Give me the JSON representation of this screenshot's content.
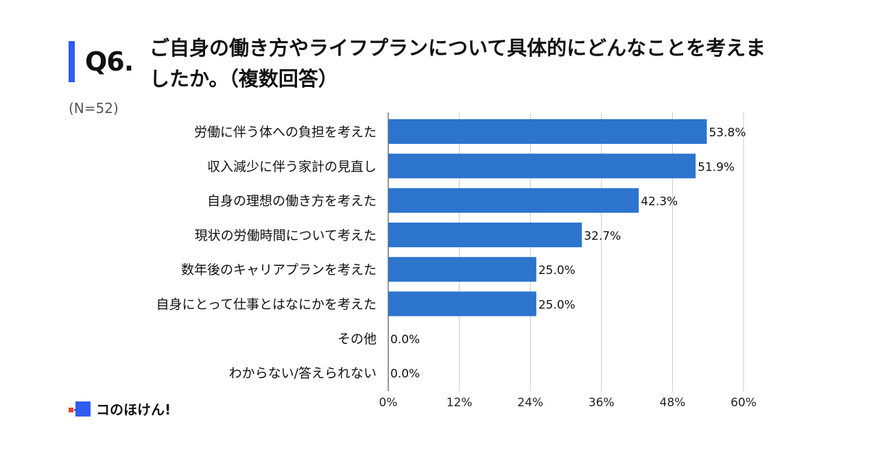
{
  "header": {
    "question_number": "Q6.",
    "question_text": "ご自身の働き方やライフプランについて具体的にどんなことを考えましたか。（複数回答）",
    "sample_size": "(N=52)",
    "accent_color": "#2f5cf0"
  },
  "brand": {
    "name": "コのほけん!",
    "logo_icon": "square-logo-icon",
    "logo_colors": [
      "#2f5cf0",
      "#e8412c"
    ]
  },
  "chart_data": {
    "type": "bar",
    "orientation": "horizontal",
    "categories": [
      "労働に伴う体への負担を考えた",
      "収入減少に伴う家計の見直し",
      "自身の理想の働き方を考えた",
      "現状の労働時間について考えた",
      "数年後のキャリアプランを考えた",
      "自身にとって仕事とはなにかを考えた",
      "その他",
      "わからない/答えられない"
    ],
    "values": [
      53.8,
      51.9,
      42.3,
      32.7,
      25.0,
      25.0,
      0.0,
      0.0
    ],
    "value_labels": [
      "53.8%",
      "51.9%",
      "42.3%",
      "32.7%",
      "25.0%",
      "25.0%",
      "0.0%",
      "0.0%"
    ],
    "xlim": [
      0,
      60
    ],
    "ticks": [
      0,
      12,
      24,
      36,
      48,
      60
    ],
    "tick_labels": [
      "0%",
      "12%",
      "24%",
      "36%",
      "48%",
      "60%"
    ],
    "grid": true,
    "bar_color": "#2c74cc"
  }
}
